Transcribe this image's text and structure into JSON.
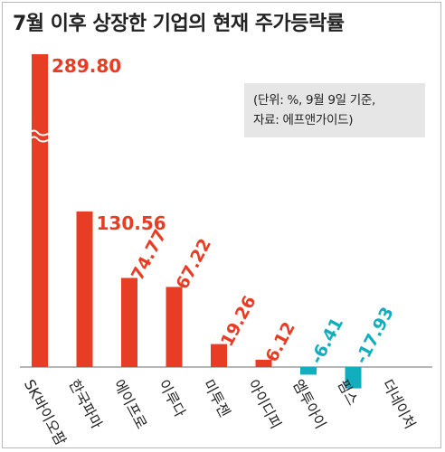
{
  "chart_data": {
    "type": "bar",
    "title": "7월 이후 상장한 기업의 현재 주가등락률",
    "note_lines": [
      "(단위: %, 9월 9일 기준,",
      "자료: 에프앤가이드)"
    ],
    "categories": [
      "SK바이오팜",
      "한국파마",
      "에이프로",
      "이루다",
      "미투젠",
      "아이디피",
      "엠투아이",
      "핌스",
      "더네이처"
    ],
    "values": [
      289.8,
      130.56,
      74.77,
      67.22,
      19.26,
      6.12,
      -6.41,
      -17.93,
      null
    ],
    "value_labels": [
      "289.80",
      "130.56",
      "74.77",
      "67.22",
      "19.26",
      "6.12",
      "-6.41",
      "-17.93",
      ""
    ],
    "axis_break": true,
    "colors": {
      "positive": "#e63d24",
      "negative": "#13aebe",
      "axis": "#8a8a8a"
    }
  }
}
